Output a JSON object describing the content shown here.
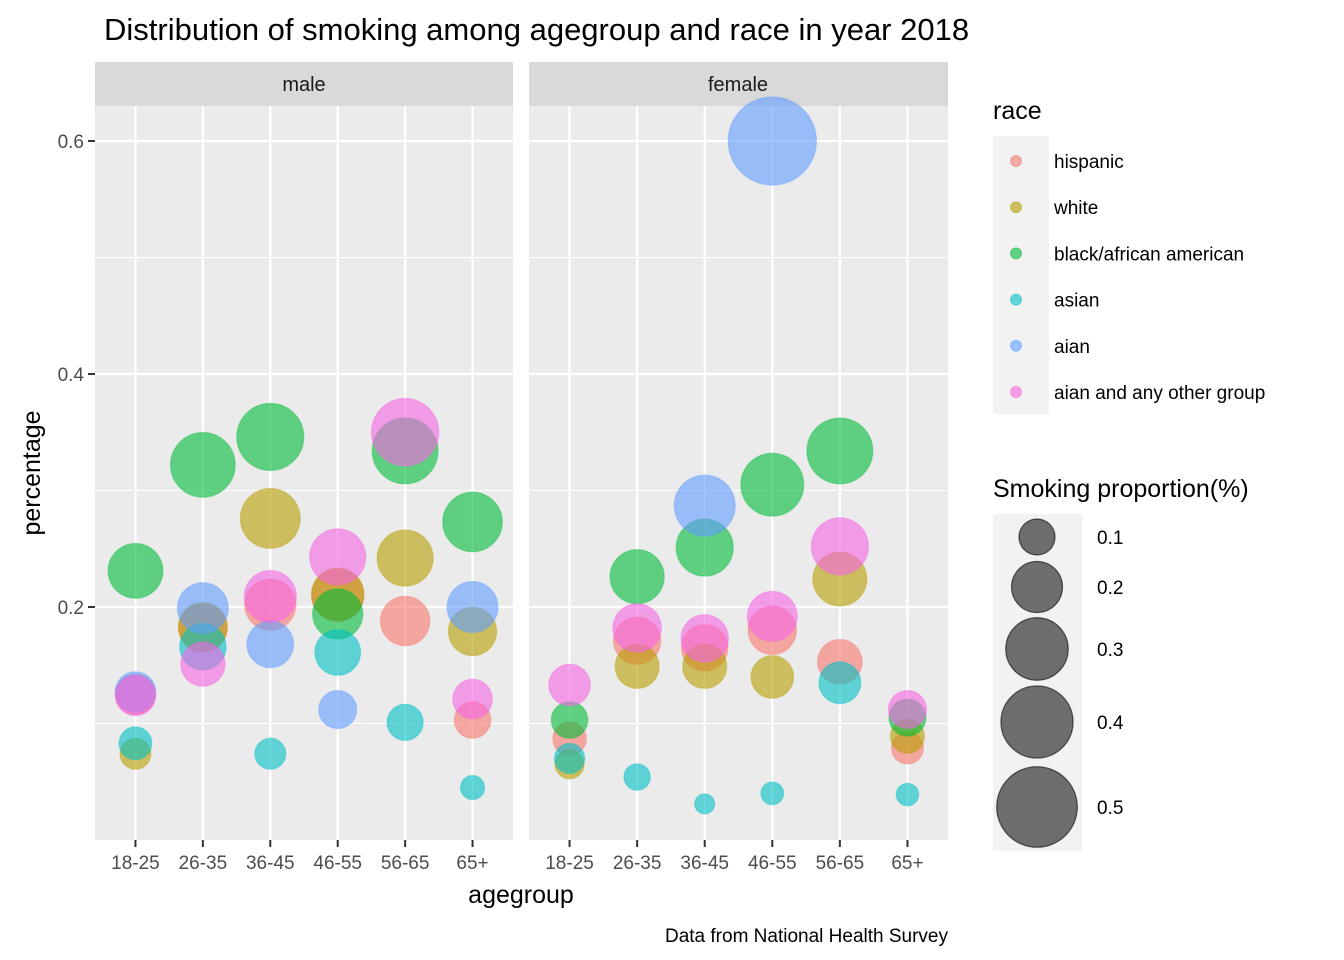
{
  "chart_data": {
    "type": "scatter",
    "title": "Distribution of smoking among agegroup and race in year 2018",
    "xlabel": "agegroup",
    "ylabel": "percentage",
    "caption": "Data from National Health Survey",
    "categories": [
      "18-25",
      "26-35",
      "36-45",
      "46-55",
      "56-65",
      "65+"
    ],
    "facets": [
      "male",
      "female"
    ],
    "ylim": [
      0,
      0.65
    ],
    "yticks": [
      0.2,
      0.4,
      0.6
    ],
    "ytick_labels": [
      "0.2",
      "0.4",
      "0.6"
    ],
    "grid": true,
    "legend": {
      "color_title": "race",
      "size_title": "Smoking proportion(%)",
      "size_breaks": [
        0.1,
        0.2,
        0.3,
        0.4,
        0.5
      ],
      "size_labels": [
        "0.1",
        "0.2",
        "0.3",
        "0.4",
        "0.5"
      ],
      "placement": "right"
    },
    "series": [
      {
        "name": "hispanic",
        "color": "#F8766D",
        "male": [
          0.125,
          0.182,
          0.202,
          0.21,
          0.188,
          0.103
        ],
        "female": [
          0.087,
          0.171,
          0.165,
          0.18,
          0.153,
          0.079
        ]
      },
      {
        "name": "white",
        "color": "#B79F00",
        "male": [
          0.074,
          0.183,
          0.276,
          0.211,
          0.242,
          0.179
        ],
        "female": [
          0.065,
          0.149,
          0.149,
          0.14,
          0.224,
          0.089
        ]
      },
      {
        "name": "black/african american",
        "color": "#00BA38",
        "male": [
          0.231,
          0.322,
          0.346,
          0.194,
          0.334,
          0.273
        ],
        "female": [
          0.103,
          0.226,
          0.251,
          0.305,
          0.334,
          0.105
        ]
      },
      {
        "name": "asian",
        "color": "#00BFC4",
        "male": [
          0.083,
          0.166,
          0.074,
          0.161,
          0.101,
          0.045
        ],
        "female": [
          0.07,
          0.054,
          0.031,
          0.04,
          0.135,
          0.039
        ]
      },
      {
        "name": "aian",
        "color": "#619CFF",
        "male": [
          0.127,
          0.199,
          0.168,
          0.112,
          null,
          0.2
        ],
        "female": [
          null,
          null,
          0.287,
          0.6,
          null,
          null
        ]
      },
      {
        "name": "aian and any other group",
        "color": "#F564E3",
        "male": [
          0.124,
          0.151,
          0.209,
          0.243,
          0.35,
          0.121
        ],
        "female": [
          0.133,
          0.182,
          0.173,
          0.192,
          0.252,
          0.112
        ]
      }
    ]
  }
}
